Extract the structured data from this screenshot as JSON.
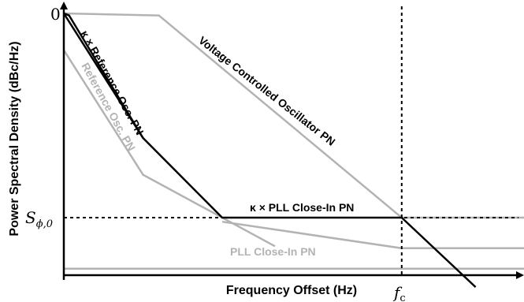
{
  "chart_data": {
    "type": "line",
    "title": "",
    "xlabel": "Frequency Offset (Hz)",
    "ylabel": "Power Spectral Density (dBc/Hz)",
    "grid": false,
    "scale": "qualitative",
    "y_tick_labels": [
      {
        "value": 0,
        "text": "0"
      },
      {
        "value": -100,
        "text": "S",
        "sub": "ϕ,0"
      }
    ],
    "x_tick_labels": [
      {
        "value": 6.4,
        "text": "f",
        "sub": "c"
      }
    ],
    "reference_lines": [
      {
        "orientation": "horizontal",
        "y": -100,
        "style": "dashed",
        "color": "#000000"
      },
      {
        "orientation": "vertical",
        "x": 6.4,
        "style": "dashed",
        "color": "#000000"
      }
    ],
    "series": [
      {
        "name": "Voltage Controlled Oscillator PN",
        "color": "#b3b3b3",
        "x": [
          0,
          1.8,
          6.4,
          9.0
        ],
        "y": [
          0,
          -1,
          -100,
          -100
        ]
      },
      {
        "name": "κ × Reference Osc. PN",
        "color": "#000000",
        "x": [
          0,
          1.5
        ],
        "y": [
          0,
          -61
        ]
      },
      {
        "name": "Reference Osc. PN",
        "color": "#b3b3b3",
        "x": [
          0,
          1.5,
          4.0
        ],
        "y": [
          -18,
          -79,
          -114
        ]
      },
      {
        "name": "κ × PLL Close-In PN",
        "color": "#000000",
        "x": [
          0,
          0.1,
          1.5,
          3.0,
          6.4,
          7.8
        ],
        "y": [
          0,
          -1,
          -61,
          -100,
          -100,
          -134
        ]
      },
      {
        "name": "PLL Close-In PN",
        "color": "#b3b3b3",
        "x": [
          3.0,
          6.4,
          9.0,
          0,
          9.0
        ],
        "y": [
          -102,
          -115,
          -115,
          -125,
          -125
        ]
      }
    ]
  }
}
